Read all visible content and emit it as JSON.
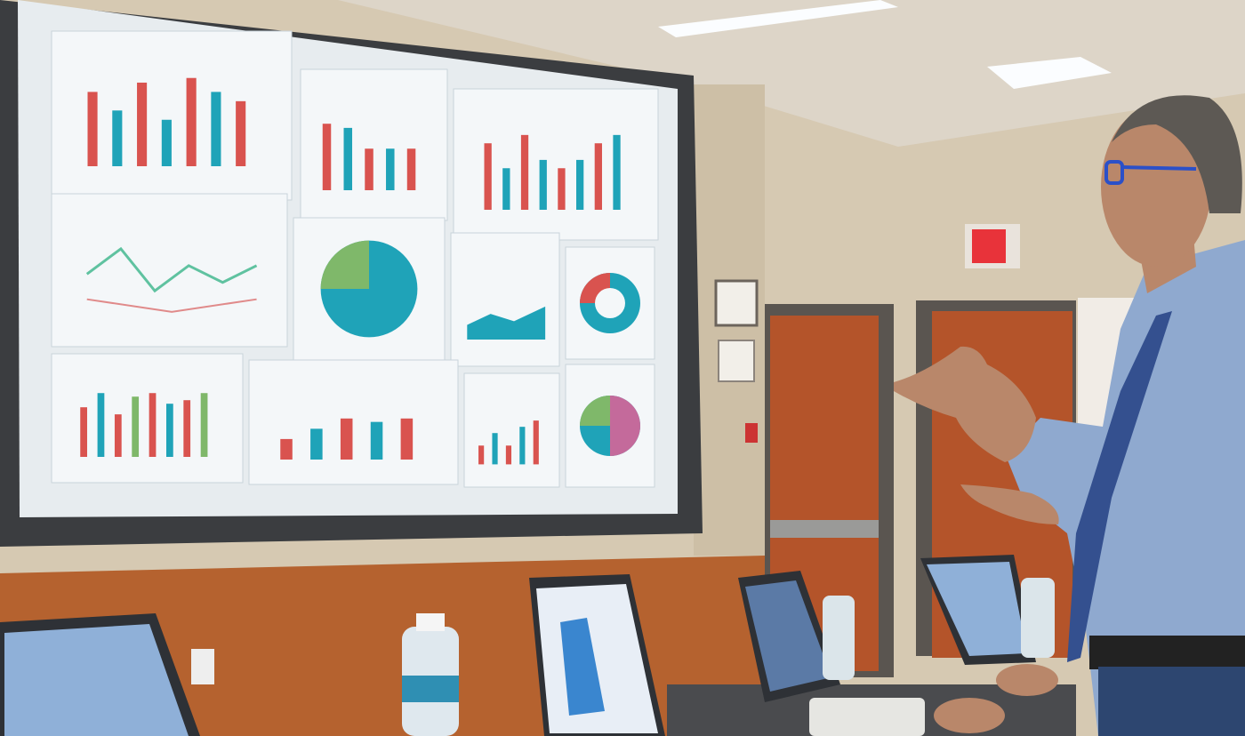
{
  "scene": {
    "colors": {
      "ceiling": "#ddd5c8",
      "wall": "#d6c9b2",
      "wainscot": "#b5622f",
      "door": "#b4542a",
      "door_frame": "#5a5550",
      "screen_bezel": "#3b3d40",
      "screen_bg": "#e7ecef",
      "panel": "#f4f7f9",
      "bar_red": "#d9534f",
      "bar_teal": "#1fa3b8",
      "bar_green": "#7fb86a",
      "shirt": "#8fa9cf",
      "tie": "#34508f",
      "skin": "#b9876a",
      "exit_sign": "#e8333a",
      "laptop": "#2e3136",
      "laptop_screen": "#8fb0d8"
    },
    "screen_panels": [
      {
        "kind": "bar",
        "values": [
          0.8,
          0.6,
          0.9,
          0.5,
          0.95,
          0.8,
          0.7
        ]
      },
      {
        "kind": "bar",
        "values": [
          0.8,
          0.75,
          0.5,
          0.5,
          0.5
        ]
      },
      {
        "kind": "bar",
        "values": [
          0.8,
          0.5,
          0.9,
          0.6,
          0.5,
          0.6,
          0.8,
          0.9
        ]
      },
      {
        "kind": "line"
      },
      {
        "kind": "pie"
      },
      {
        "kind": "area"
      },
      {
        "kind": "donut"
      },
      {
        "kind": "bar",
        "values": [
          0.7,
          0.9,
          0.6,
          0.85,
          0.9,
          0.75,
          0.8,
          0.9
        ]
      },
      {
        "kind": "bar",
        "values": [
          0.3,
          0.45,
          0.6,
          0.55,
          0.6
        ]
      },
      {
        "kind": "bar",
        "values": [
          0.3,
          0.5,
          0.3,
          0.6,
          0.7
        ]
      },
      {
        "kind": "pie"
      }
    ]
  }
}
